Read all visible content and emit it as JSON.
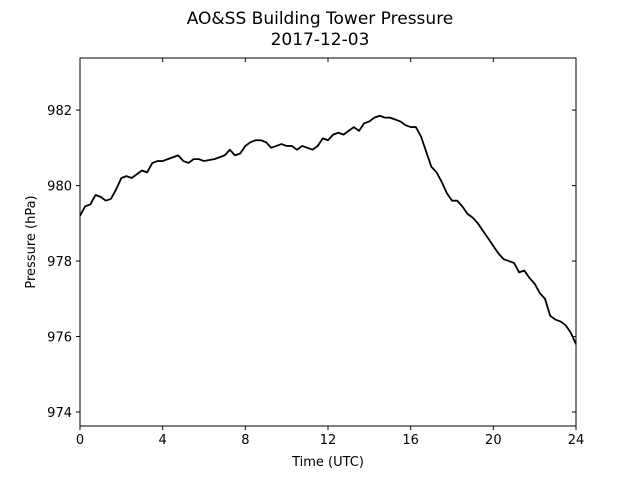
{
  "chart_data": {
    "type": "line",
    "title": "AO&SS Building Tower Pressure",
    "subtitle": "2017-12-03",
    "xlabel": "Time (UTC)",
    "ylabel": "Pressure (hPa)",
    "x": [
      0,
      0.25,
      0.5,
      0.75,
      1,
      1.25,
      1.5,
      1.75,
      2,
      2.25,
      2.5,
      2.75,
      3,
      3.25,
      3.5,
      3.75,
      4,
      4.25,
      4.5,
      4.75,
      5,
      5.25,
      5.5,
      5.75,
      6,
      6.5,
      7,
      7.25,
      7.5,
      7.75,
      8,
      8.25,
      8.5,
      8.75,
      9,
      9.25,
      9.5,
      9.75,
      10,
      10.25,
      10.5,
      10.75,
      11,
      11.25,
      11.5,
      11.75,
      12,
      12.25,
      12.5,
      12.75,
      13,
      13.25,
      13.5,
      13.75,
      14,
      14.25,
      14.5,
      14.75,
      15,
      15.25,
      15.5,
      15.75,
      16,
      16.25,
      16.5,
      16.75,
      17,
      17.25,
      17.5,
      17.75,
      18,
      18.25,
      18.5,
      18.75,
      19,
      19.25,
      19.5,
      19.75,
      20,
      20.25,
      20.5,
      20.75,
      21,
      21.25,
      21.5,
      21.75,
      22,
      22.25,
      22.5,
      22.75,
      23,
      23.25,
      23.5,
      23.75,
      24
    ],
    "series": [
      {
        "color": "#000000",
        "values": [
          979.2,
          979.45,
          979.5,
          979.75,
          979.7,
          979.6,
          979.65,
          979.9,
          980.2,
          980.25,
          980.2,
          980.3,
          980.4,
          980.35,
          980.6,
          980.65,
          980.65,
          980.7,
          980.75,
          980.8,
          980.65,
          980.6,
          980.7,
          980.7,
          980.65,
          980.7,
          980.8,
          980.95,
          980.8,
          980.85,
          981.05,
          981.15,
          981.2,
          981.2,
          981.15,
          981.0,
          981.05,
          981.1,
          981.05,
          981.05,
          980.95,
          981.05,
          981.0,
          980.95,
          981.05,
          981.25,
          981.2,
          981.35,
          981.4,
          981.35,
          981.45,
          981.55,
          981.45,
          981.65,
          981.7,
          981.8,
          981.85,
          981.8,
          981.8,
          981.75,
          981.7,
          981.6,
          981.55,
          981.55,
          981.3,
          980.9,
          980.5,
          980.35,
          980.1,
          979.8,
          979.6,
          979.6,
          979.45,
          979.25,
          979.15,
          979.0,
          978.8,
          978.6,
          978.4,
          978.2,
          978.05,
          978.0,
          977.95,
          977.7,
          977.75,
          977.55,
          977.4,
          977.15,
          977.0,
          976.55,
          976.45,
          976.4,
          976.3,
          976.1,
          975.8
        ]
      }
    ],
    "xlim": [
      0,
      24
    ],
    "xticks": [
      0,
      4,
      8,
      12,
      16,
      20,
      24
    ],
    "ylim": [
      973.63,
      983.38
    ],
    "yticks": [
      974,
      976,
      978,
      980,
      982
    ]
  }
}
